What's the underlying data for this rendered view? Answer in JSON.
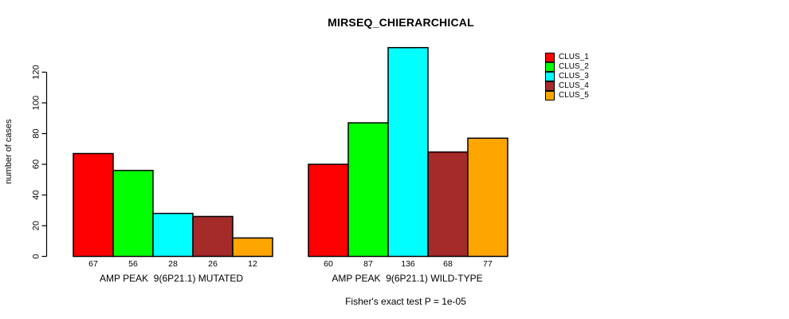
{
  "figure": {
    "background": "#FFFFFF",
    "axis_color": "#000000"
  },
  "chart_data": {
    "type": "bar",
    "title": "MIRSEQ_CHIERARCHICAL",
    "ylabel": "number of cases",
    "xlabel": "",
    "yticks": [
      0,
      20,
      40,
      60,
      80,
      100,
      120
    ],
    "ylim": [
      0,
      140
    ],
    "grid": false,
    "legend_position": "top-right",
    "clusters": [
      {
        "label": "CLUS_1",
        "color": "#FF0000"
      },
      {
        "label": "CLUS_2",
        "color": "#00FF00"
      },
      {
        "label": "CLUS_3",
        "color": "#00FFFF"
      },
      {
        "label": "CLUS_4",
        "color": "#A52A2A"
      },
      {
        "label": "CLUS_5",
        "color": "#FFA500"
      }
    ],
    "groups": [
      {
        "label": "AMP PEAK  9(6P21.1) MUTATED",
        "values": [
          67,
          56,
          28,
          26,
          12
        ]
      },
      {
        "label": "AMP PEAK  9(6P21.1) WILD-TYPE",
        "values": [
          60,
          87,
          136,
          68,
          77
        ]
      }
    ],
    "annotation": "Fisher's exact test P = 1e-05"
  }
}
